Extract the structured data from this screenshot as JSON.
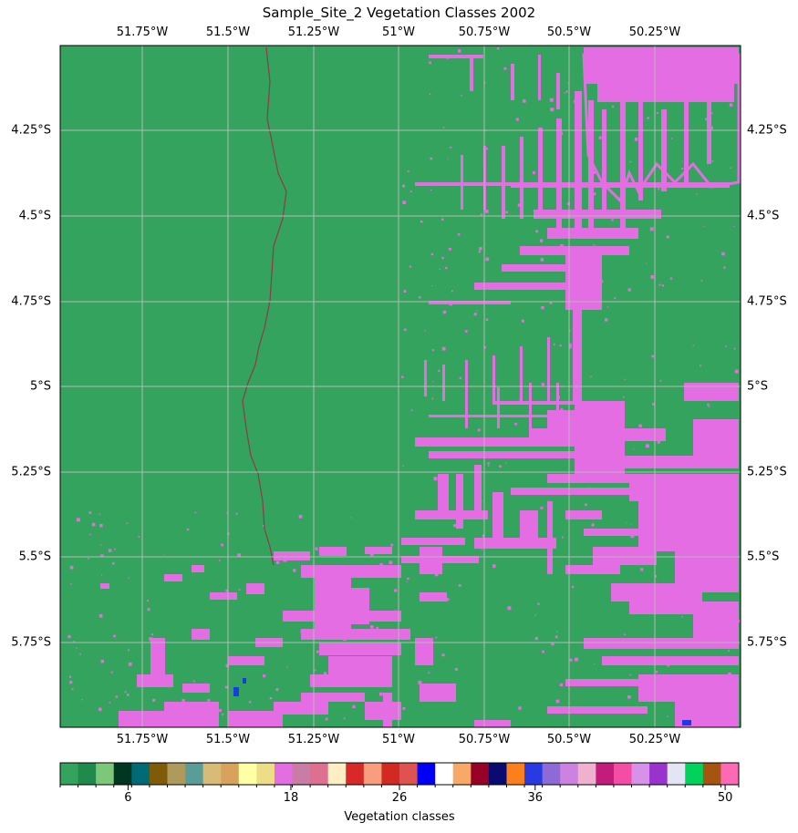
{
  "title": "Sample_Site_2 Vegetation Classes 2002",
  "longitude_ticks": [
    "51.75°W",
    "51.5°W",
    "51.25°W",
    "51°W",
    "50.75°W",
    "50.5°W",
    "50.25°W"
  ],
  "latitude_ticks": [
    "4.25°S",
    "4.5°S",
    "4.75°S",
    "5°S",
    "5.25°S",
    "5.5°S",
    "5.75°S"
  ],
  "map": {
    "background_class_color": "#33a35d",
    "deforested_class_color": "#e46de4",
    "gridline_color": "#b8b8b8",
    "river_color": "#8e3b4a"
  },
  "colorbar": {
    "label": "Vegetation classes",
    "tick_labels": [
      "6",
      "18",
      "26",
      "36",
      "50"
    ],
    "tick_values": [
      6,
      18,
      26,
      36,
      50
    ],
    "class_min": 1,
    "class_max": 51,
    "colors": [
      "#33a35d",
      "#1f8a4c",
      "#7dc77a",
      "#013620",
      "#006b74",
      "#7f5b08",
      "#ae9a5c",
      "#5a9c98",
      "#d7bb77",
      "#d9a25c",
      "#ffffa6",
      "#eddd86",
      "#e46de4",
      "#c87ca6",
      "#dd7091",
      "#ffedc3",
      "#d72a28",
      "#f89e7f",
      "#d22a22",
      "#de5251",
      "#0000fa",
      "#ffffff",
      "#f8a867",
      "#980226",
      "#0b0a70",
      "#fc7f1e",
      "#2a3ae2",
      "#8e6ad6",
      "#cc82e0",
      "#f0b0d0",
      "#c31c7a",
      "#f54da5",
      "#d791e9",
      "#9a32cd",
      "#e4e4f7",
      "#00d25c",
      "#a65511",
      "#fd69b5"
    ]
  }
}
